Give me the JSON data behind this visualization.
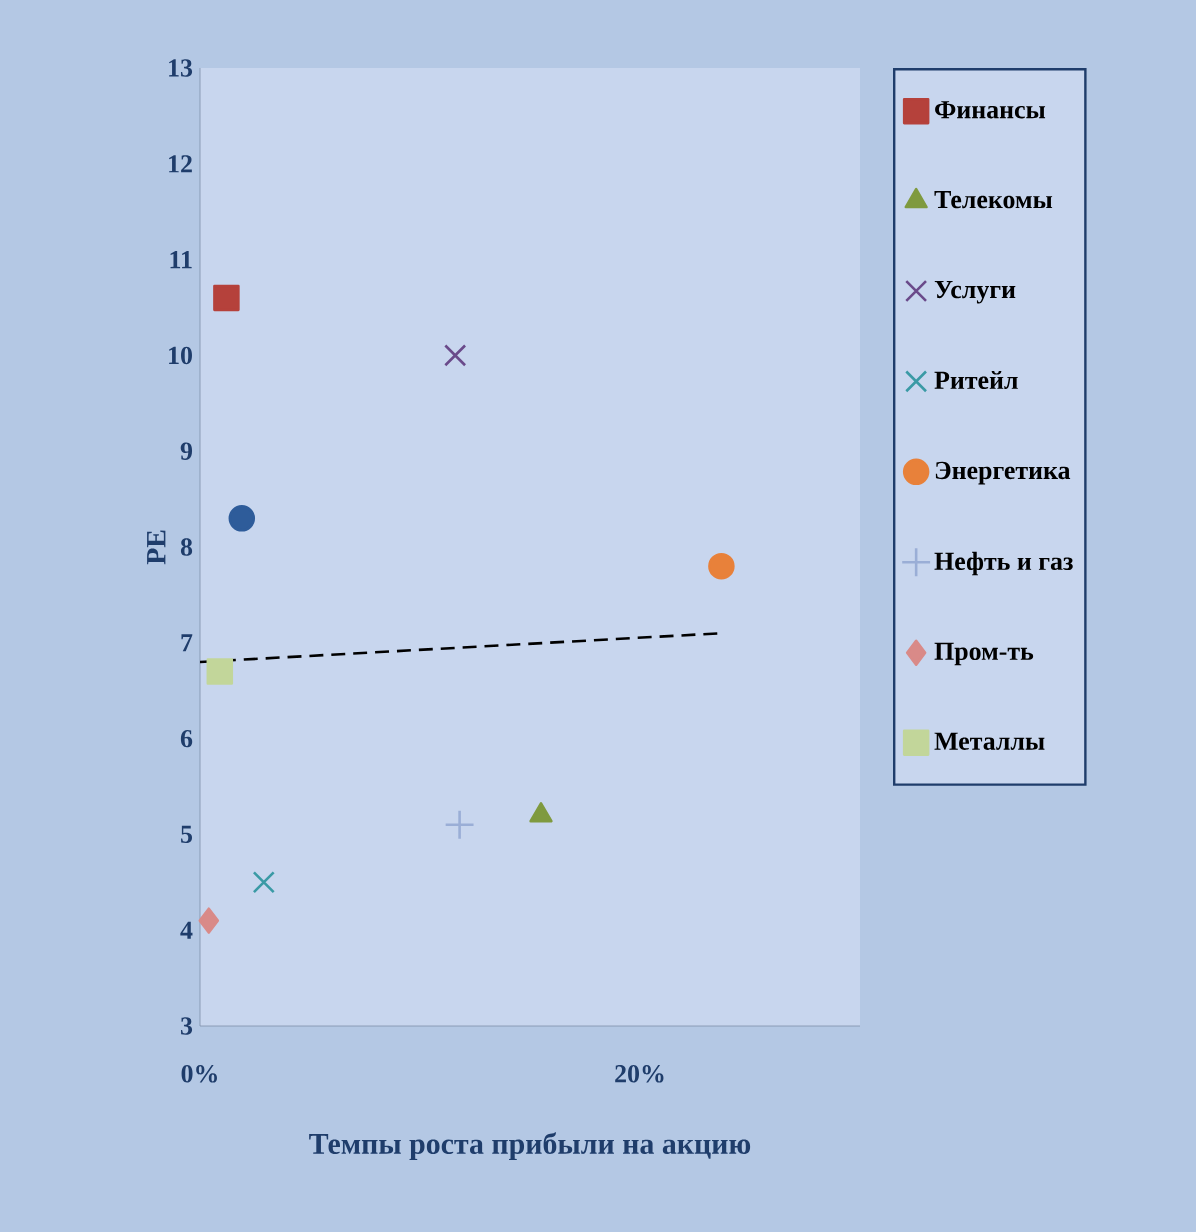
{
  "chart_data": {
    "type": "scatter",
    "xlabel": "Темпы роста прибыли на акцию",
    "ylabel": "PE",
    "xlim": [
      0,
      30
    ],
    "xticks": [
      {
        "value": 0,
        "label": "0%"
      },
      {
        "value": 20,
        "label": "20%"
      }
    ],
    "ylim": [
      3,
      13
    ],
    "yticks": [
      3,
      4,
      5,
      6,
      7,
      8,
      9,
      10,
      11,
      12,
      13
    ],
    "grid": false,
    "legend": "right",
    "series": [
      {
        "name": "Финансы",
        "color": "#b5413b",
        "marker": "square",
        "x": [
          1.2
        ],
        "values": [
          10.6
        ]
      },
      {
        "name": "Телекомы",
        "color": "#7f9a3f",
        "marker": "triangle",
        "x": [
          15.5
        ],
        "values": [
          5.2
        ]
      },
      {
        "name": "Услуги",
        "color": "#6a4a8a",
        "marker": "cross",
        "x": [
          11.6
        ],
        "values": [
          10.0
        ]
      },
      {
        "name": "Ритейл",
        "color": "#3a9aa5",
        "marker": "cross",
        "x": [
          2.9
        ],
        "values": [
          4.5
        ]
      },
      {
        "name": "Энергетика",
        "color": "#e8813a",
        "marker": "circle",
        "x": [
          23.7
        ],
        "values": [
          7.8
        ]
      },
      {
        "name": "Нефть и газ",
        "color": "#9aaed6",
        "marker": "plus",
        "x": [
          11.8
        ],
        "values": [
          5.1
        ]
      },
      {
        "name": "Пром-ть",
        "color": "#d98a88",
        "marker": "diamond",
        "x": [
          0.4
        ],
        "values": [
          4.1
        ]
      },
      {
        "name": "Металлы",
        "color": "#c2d69a",
        "marker": "square",
        "x": [
          0.9
        ],
        "values": [
          6.7
        ]
      },
      {
        "color": "#2e5c9a",
        "marker": "circle",
        "x": [
          1.9
        ],
        "values": [
          8.3
        ]
      },
      {
        "type": "line",
        "color": "#000000",
        "line_style": "dashed",
        "marker": "none",
        "x": [
          0,
          23.7
        ],
        "values": [
          6.8,
          7.1
        ]
      }
    ]
  }
}
